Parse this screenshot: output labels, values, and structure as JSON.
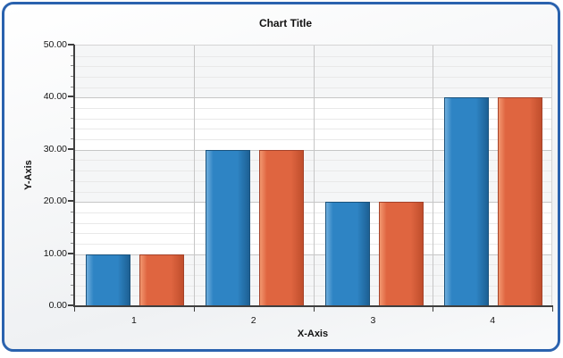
{
  "panel": {
    "frame_border_color": "#2A62AE",
    "background": "#ffffff"
  },
  "chart_data": {
    "type": "bar",
    "title": "Chart Title",
    "xlabel": "X-Axis",
    "ylabel": "Y-Axis",
    "categories": [
      "1",
      "2",
      "3",
      "4"
    ],
    "series": [
      {
        "color": "#2E84C4",
        "color_light": "#6FAEDD",
        "color_dark": "#1D6094",
        "border": "#1A527C",
        "values": [
          10,
          30,
          20,
          40
        ]
      },
      {
        "color": "#DF6540",
        "color_light": "#F2976F",
        "color_dark": "#C04E2C",
        "border": "#A4422A",
        "values": [
          10,
          30,
          20,
          40
        ]
      }
    ],
    "ylim": [
      0,
      50
    ],
    "y_major_ticks": [
      0,
      10,
      20,
      30,
      40,
      50
    ],
    "y_tick_labels": [
      "0.00",
      "10.00",
      "20.00",
      "30.00",
      "40.00",
      "50.00"
    ],
    "y_minor_step": 2,
    "legend": "none",
    "grid": "horizontal major+minor lines, vertical lines at category boundaries, alternating horizontal shaded bands",
    "colors": {
      "axis": "#3f3f3f",
      "major_grid": "#c6c6c6",
      "minor_grid": "#e9e9e9",
      "band_shaded": "#f5f6f7",
      "band_plain": "#ffffff",
      "plot_border": "#d4d4d4"
    }
  }
}
